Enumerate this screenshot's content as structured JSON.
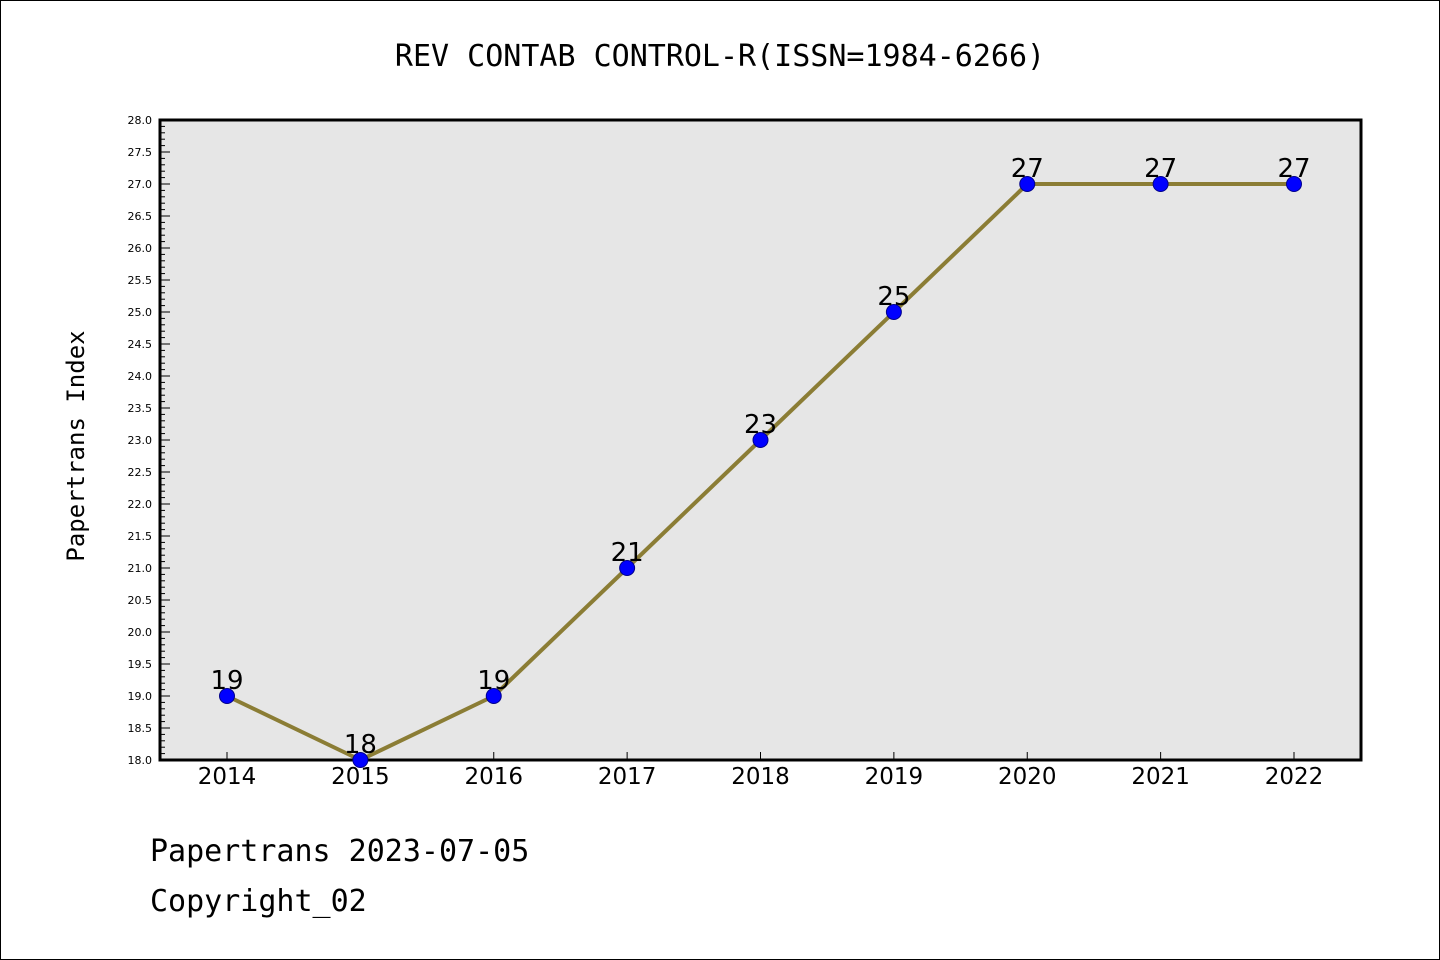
{
  "chart_data": {
    "type": "line",
    "title": "REV CONTAB CONTROL-R(ISSN=1984-6266)",
    "xlabel": "",
    "ylabel": "Papertrans Index",
    "categories": [
      "2014",
      "2015",
      "2016",
      "2017",
      "2018",
      "2019",
      "2020",
      "2021",
      "2022"
    ],
    "series": [
      {
        "values": [
          19,
          18,
          19,
          21,
          23,
          25,
          27,
          27,
          27
        ]
      }
    ],
    "ylim": [
      18.0,
      28.0
    ],
    "ytick_step": 0.5,
    "grid": false,
    "line_color": "#8B7D35",
    "marker_color": "#0000FF",
    "plot_background": "#E6E6E6"
  },
  "footer": {
    "line1": "Papertrans 2023-07-05",
    "line2": "Copyright_02"
  }
}
